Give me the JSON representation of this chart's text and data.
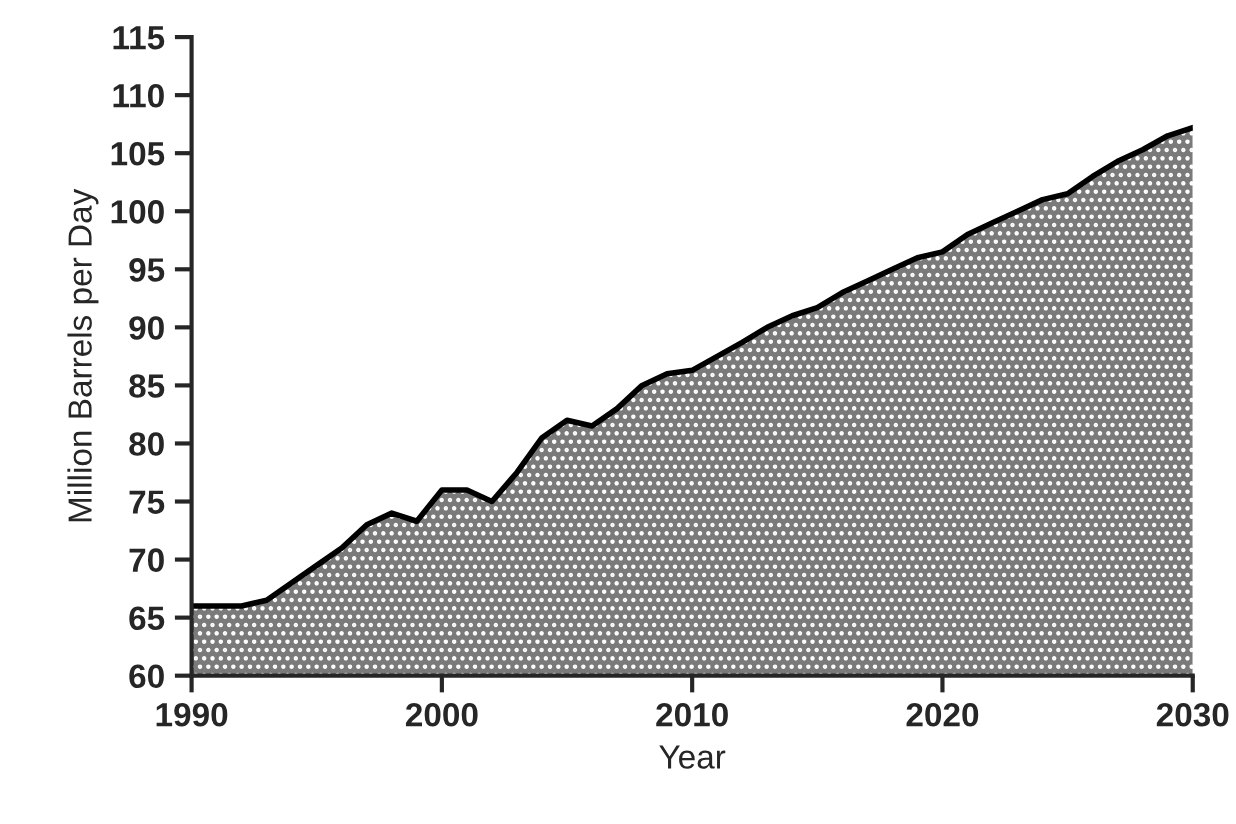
{
  "chart_data": {
    "type": "area",
    "xlabel": "Year",
    "ylabel": "Million Barrels per Day",
    "x": [
      1990,
      1991,
      1992,
      1993,
      1994,
      1995,
      1996,
      1997,
      1998,
      1999,
      2000,
      2001,
      2002,
      2003,
      2004,
      2005,
      2006,
      2007,
      2008,
      2009,
      2010,
      2011,
      2012,
      2013,
      2014,
      2015,
      2016,
      2017,
      2018,
      2019,
      2020,
      2021,
      2022,
      2023,
      2024,
      2025,
      2026,
      2027,
      2028,
      2029,
      2030
    ],
    "series": [
      {
        "color": "#7a7a7a",
        "values": [
          66,
          66,
          66,
          66.5,
          68,
          69.5,
          71,
          73,
          74,
          73.3,
          76,
          76,
          75,
          77.5,
          80.5,
          82,
          81.5,
          83,
          85,
          86,
          86.3,
          87.5,
          88.7,
          90,
          91,
          91.7,
          93,
          94,
          95,
          96,
          96.5,
          98,
          99,
          100,
          101,
          101.5,
          103,
          104.3,
          105.3,
          106.5,
          107.2
        ]
      }
    ],
    "xlim": [
      1990,
      2030
    ],
    "xticks": [
      1990,
      2000,
      2010,
      2020,
      2030
    ],
    "ylim": [
      60,
      115
    ],
    "yticks": [
      60,
      65,
      70,
      75,
      80,
      85,
      90,
      95,
      100,
      105,
      110,
      115
    ],
    "grid": false,
    "legend": false
  }
}
